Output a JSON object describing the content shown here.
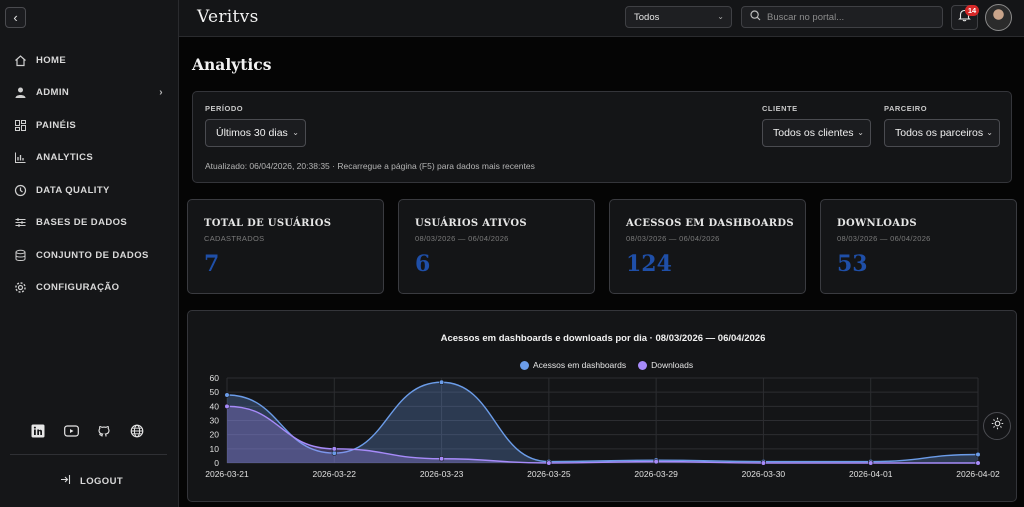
{
  "sidebar": {
    "items": [
      {
        "label": "HOME",
        "icon": "home-icon"
      },
      {
        "label": "ADMIN",
        "icon": "user-icon"
      },
      {
        "label": "PAINÉIS",
        "icon": "dashboard-icon"
      },
      {
        "label": "ANALYTICS",
        "icon": "chart-icon"
      },
      {
        "label": "DATA QUALITY",
        "icon": "clock-icon"
      },
      {
        "label": "BASES DE DADOS",
        "icon": "list-icon"
      },
      {
        "label": "CONJUNTO DE DADOS",
        "icon": "database-icon"
      },
      {
        "label": "CONFIGURAÇÃO",
        "icon": "gear-icon"
      }
    ],
    "logout_label": "LOGOUT"
  },
  "header": {
    "logo": "Veritvs",
    "scope_select": "Todos",
    "search_placeholder": "Buscar no portal...",
    "notification_count": "14"
  },
  "page": {
    "title": "Analytics"
  },
  "filters": {
    "period_label": "PERÍODO",
    "period_value": "Últimos 30 dias",
    "client_label": "CLIENTE",
    "client_value": "Todos os clientes",
    "partner_label": "PARCEIRO",
    "partner_value": "Todos os parceiros",
    "updated_text": "Atualizado: 06/04/2026, 20:38:35 · Recarregue a página (F5) para dados mais recentes"
  },
  "cards": [
    {
      "title": "TOTAL DE USUÁRIOS",
      "subtitle": "CADASTRADOS",
      "value": "7"
    },
    {
      "title": "USUÁRIOS ATIVOS",
      "subtitle": "08/03/2026 — 06/04/2026",
      "value": "6"
    },
    {
      "title": "ACESSOS EM DASHBOARDS",
      "subtitle": "08/03/2026 — 06/04/2026",
      "value": "124"
    },
    {
      "title": "DOWNLOADS",
      "subtitle": "08/03/2026 — 06/04/2026",
      "value": "53"
    }
  ],
  "colors": {
    "accent": "#1f4fa8",
    "series_dashboards": "#6b9ce8",
    "series_downloads": "#a78bfa",
    "badge": "#d62828"
  },
  "chart_data": {
    "type": "area",
    "title": "Acessos em dashboards e downloads por dia · 08/03/2026 — 06/04/2026",
    "categories": [
      "2026-03-21",
      "2026-03-22",
      "2026-03-23",
      "2026-03-25",
      "2026-03-29",
      "2026-03-30",
      "2026-04-01",
      "2026-04-02"
    ],
    "series": [
      {
        "name": "Acessos em dashboards",
        "values": [
          48,
          7,
          57,
          1,
          2,
          1,
          1,
          6
        ]
      },
      {
        "name": "Downloads",
        "values": [
          40,
          10,
          3,
          0,
          1,
          0,
          0,
          0
        ]
      }
    ],
    "ylim": [
      0,
      60
    ],
    "yticks": [
      0,
      10,
      20,
      30,
      40,
      50,
      60
    ],
    "grid": true,
    "legend": "top-center"
  }
}
